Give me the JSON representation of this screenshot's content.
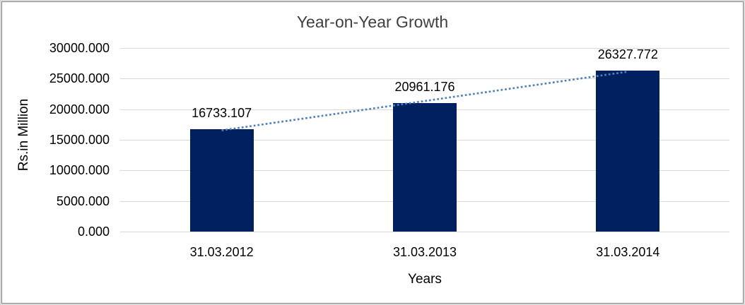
{
  "chart_data": {
    "type": "bar",
    "title": "Year-on-Year Growth",
    "xlabel": "Years",
    "ylabel": "Rs.in Million",
    "categories": [
      "31.03.2012",
      "31.03.2013",
      "31.03.2014"
    ],
    "values": [
      16733.107,
      20961.176,
      26327.772
    ],
    "data_labels": [
      "16733.107",
      "20961.176",
      "26327.772"
    ],
    "yticks": [
      0,
      5000,
      10000,
      15000,
      20000,
      25000,
      30000
    ],
    "ytick_labels": [
      "0.000",
      "5000.000",
      "10000.000",
      "15000.000",
      "20000.000",
      "25000.000",
      "30000.000"
    ],
    "ylim": [
      0,
      30000
    ],
    "grid": true,
    "legend": "none",
    "trendline": {
      "type": "linear",
      "style": "dotted",
      "span": "first-to-last-category"
    },
    "colors": {
      "bar": "#002060",
      "trendline": "#4f81bd",
      "gridline": "#d9d9d9",
      "title_text": "#404040",
      "axis_text": "#000000",
      "frame_border": "#8a8a8a",
      "frame_outer": "#d9d9d9",
      "background": "#ffffff"
    }
  }
}
